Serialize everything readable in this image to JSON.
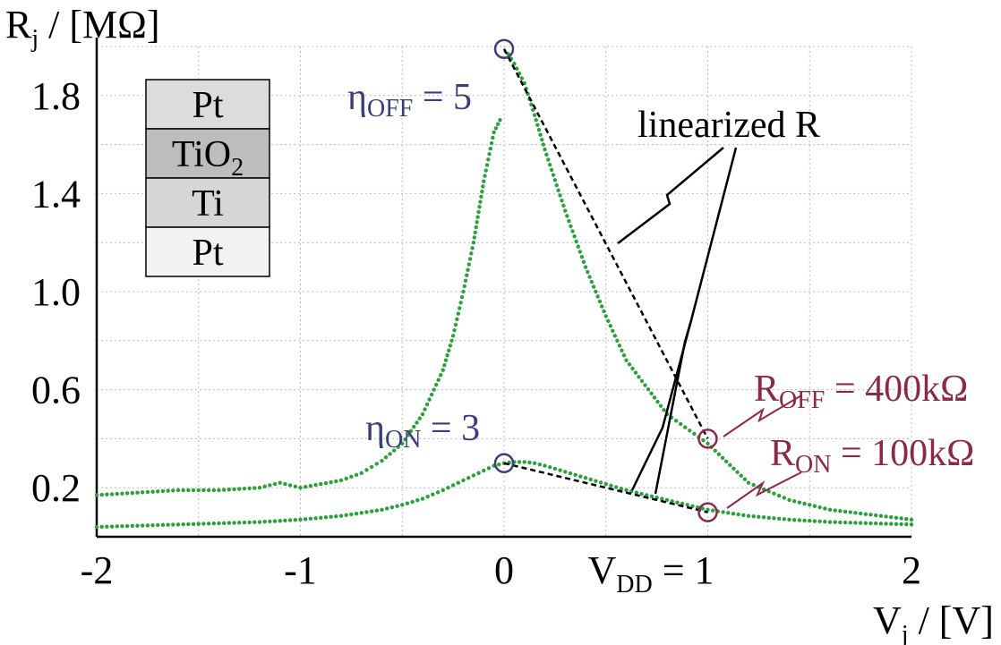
{
  "chart_data": {
    "type": "scatter",
    "title": "",
    "xlabel": "V",
    "xlabel_sub": "j",
    "xlabel_unit": " / [V]",
    "ylabel": "R",
    "ylabel_sub": "j",
    "ylabel_unit": " / [MΩ]",
    "xlim": [
      -2,
      2
    ],
    "ylim": [
      0,
      2.0
    ],
    "grid": true,
    "x_ticks": [
      -2,
      -1,
      0,
      1,
      2
    ],
    "x_tick_labels": [
      "-2",
      "-1",
      "0",
      "",
      "2"
    ],
    "y_ticks": [
      0.2,
      0.6,
      1.0,
      1.4,
      1.8
    ],
    "y_tick_labels": [
      "0.2",
      "0.6",
      "1.0",
      "1.4",
      "1.8"
    ],
    "series": [
      {
        "color": "#2e9e3e",
        "x": [
          -2.0,
          -1.8,
          -1.6,
          -1.4,
          -1.2,
          -1.1,
          -1.0,
          -0.8,
          -0.7,
          -0.6,
          -0.5,
          -0.4,
          -0.3,
          -0.25,
          -0.2,
          -0.15,
          -0.1,
          -0.05,
          -0.02,
          0.0,
          0.02,
          0.05,
          0.1,
          0.15,
          0.2,
          0.3,
          0.4,
          0.5,
          0.6,
          0.8,
          1.0,
          1.2,
          1.4,
          1.6,
          1.8,
          2.0
        ],
        "y": [
          0.17,
          0.18,
          0.19,
          0.19,
          0.2,
          0.22,
          0.2,
          0.23,
          0.26,
          0.31,
          0.38,
          0.5,
          0.68,
          0.82,
          1.0,
          1.2,
          1.45,
          1.65,
          1.7,
          0.3,
          1.97,
          1.93,
          1.85,
          1.72,
          1.58,
          1.33,
          1.1,
          0.9,
          0.72,
          0.5,
          0.38,
          0.22,
          0.15,
          0.11,
          0.09,
          0.07
        ]
      },
      {
        "color": "#2e9e3e",
        "x": [
          -2.0,
          -1.8,
          -1.6,
          -1.4,
          -1.2,
          -1.0,
          -0.8,
          -0.6,
          -0.5,
          -0.4,
          -0.3,
          -0.2,
          -0.1,
          -0.05,
          0.0,
          0.05,
          0.1,
          0.15,
          0.2,
          0.3,
          0.4,
          0.5,
          0.6,
          0.7,
          0.8,
          1.0,
          1.2,
          1.4,
          1.6,
          1.8,
          2.0
        ],
        "y": [
          0.04,
          0.045,
          0.05,
          0.055,
          0.06,
          0.07,
          0.085,
          0.11,
          0.13,
          0.155,
          0.19,
          0.23,
          0.27,
          0.29,
          0.3,
          0.305,
          0.305,
          0.3,
          0.29,
          0.265,
          0.24,
          0.215,
          0.19,
          0.17,
          0.15,
          0.11,
          0.085,
          0.07,
          0.06,
          0.055,
          0.05
        ]
      }
    ],
    "linearized_lines": [
      {
        "x": [
          0,
          1
        ],
        "y": [
          1.99,
          0.4
        ]
      },
      {
        "x": [
          0,
          1
        ],
        "y": [
          0.3,
          0.1
        ]
      }
    ],
    "markers": [
      {
        "x": 0,
        "y": 1.99,
        "color": "#3a3f7a"
      },
      {
        "x": 0,
        "y": 0.3,
        "color": "#3a3f7a"
      },
      {
        "x": 1,
        "y": 0.4,
        "color": "#8a2a4a"
      },
      {
        "x": 1,
        "y": 0.1,
        "color": "#8a2a4a"
      }
    ],
    "annotations": {
      "eta_off": {
        "main": "η",
        "sub": "OFF",
        "rest": " = 5"
      },
      "eta_on": {
        "main": "η",
        "sub": "ON",
        "rest": " = 3"
      },
      "r_off": {
        "main": "R",
        "sub": "OFF",
        "rest": " = 400kΩ"
      },
      "r_on": {
        "main": "R",
        "sub": "ON",
        "rest": " = 100kΩ"
      },
      "vdd": {
        "main": "V",
        "sub": "DD",
        "rest": " = 1"
      },
      "linearized": "linearized R"
    },
    "layer_stack": [
      "Pt",
      "TiO2",
      "Ti",
      "Pt"
    ],
    "colors": {
      "data": "#2e9e3e",
      "eta": "#3a3f7a",
      "r_values": "#8a2a4a",
      "grid": "#bbbbbb"
    }
  }
}
